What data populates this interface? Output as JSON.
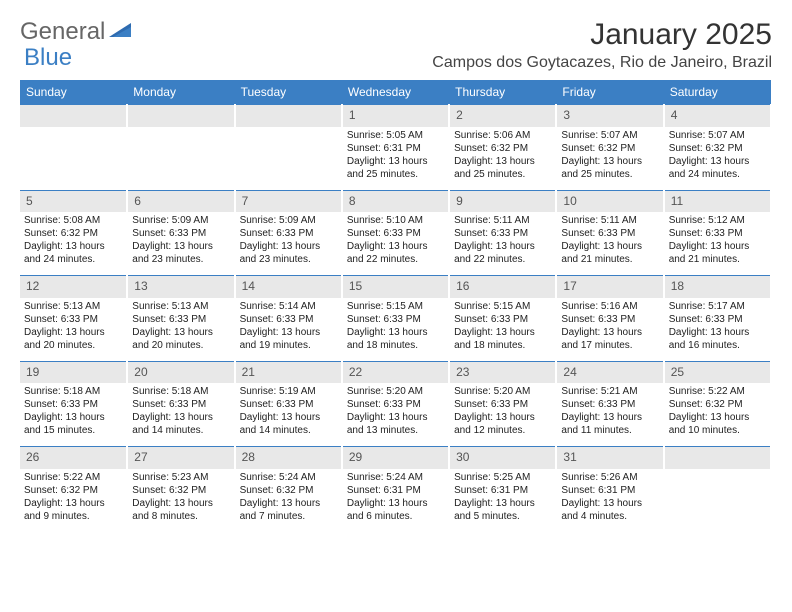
{
  "logo": {
    "part1": "General",
    "part2": "Blue"
  },
  "header": {
    "title": "January 2025",
    "location": "Campos dos Goytacazes, Rio de Janeiro, Brazil"
  },
  "colors": {
    "header_bg": "#3b7fc4",
    "header_text": "#ffffff",
    "daynum_bg": "#e8e8e8",
    "day_border": "#3b7fc4",
    "body_text": "#222222"
  },
  "weekdays": [
    "Sunday",
    "Monday",
    "Tuesday",
    "Wednesday",
    "Thursday",
    "Friday",
    "Saturday"
  ],
  "weeks": [
    [
      {
        "empty": true
      },
      {
        "empty": true
      },
      {
        "empty": true
      },
      {
        "day": "1",
        "sunrise": "Sunrise: 5:05 AM",
        "sunset": "Sunset: 6:31 PM",
        "day1": "Daylight: 13 hours",
        "day2": "and 25 minutes."
      },
      {
        "day": "2",
        "sunrise": "Sunrise: 5:06 AM",
        "sunset": "Sunset: 6:32 PM",
        "day1": "Daylight: 13 hours",
        "day2": "and 25 minutes."
      },
      {
        "day": "3",
        "sunrise": "Sunrise: 5:07 AM",
        "sunset": "Sunset: 6:32 PM",
        "day1": "Daylight: 13 hours",
        "day2": "and 25 minutes."
      },
      {
        "day": "4",
        "sunrise": "Sunrise: 5:07 AM",
        "sunset": "Sunset: 6:32 PM",
        "day1": "Daylight: 13 hours",
        "day2": "and 24 minutes."
      }
    ],
    [
      {
        "day": "5",
        "sunrise": "Sunrise: 5:08 AM",
        "sunset": "Sunset: 6:32 PM",
        "day1": "Daylight: 13 hours",
        "day2": "and 24 minutes."
      },
      {
        "day": "6",
        "sunrise": "Sunrise: 5:09 AM",
        "sunset": "Sunset: 6:33 PM",
        "day1": "Daylight: 13 hours",
        "day2": "and 23 minutes."
      },
      {
        "day": "7",
        "sunrise": "Sunrise: 5:09 AM",
        "sunset": "Sunset: 6:33 PM",
        "day1": "Daylight: 13 hours",
        "day2": "and 23 minutes."
      },
      {
        "day": "8",
        "sunrise": "Sunrise: 5:10 AM",
        "sunset": "Sunset: 6:33 PM",
        "day1": "Daylight: 13 hours",
        "day2": "and 22 minutes."
      },
      {
        "day": "9",
        "sunrise": "Sunrise: 5:11 AM",
        "sunset": "Sunset: 6:33 PM",
        "day1": "Daylight: 13 hours",
        "day2": "and 22 minutes."
      },
      {
        "day": "10",
        "sunrise": "Sunrise: 5:11 AM",
        "sunset": "Sunset: 6:33 PM",
        "day1": "Daylight: 13 hours",
        "day2": "and 21 minutes."
      },
      {
        "day": "11",
        "sunrise": "Sunrise: 5:12 AM",
        "sunset": "Sunset: 6:33 PM",
        "day1": "Daylight: 13 hours",
        "day2": "and 21 minutes."
      }
    ],
    [
      {
        "day": "12",
        "sunrise": "Sunrise: 5:13 AM",
        "sunset": "Sunset: 6:33 PM",
        "day1": "Daylight: 13 hours",
        "day2": "and 20 minutes."
      },
      {
        "day": "13",
        "sunrise": "Sunrise: 5:13 AM",
        "sunset": "Sunset: 6:33 PM",
        "day1": "Daylight: 13 hours",
        "day2": "and 20 minutes."
      },
      {
        "day": "14",
        "sunrise": "Sunrise: 5:14 AM",
        "sunset": "Sunset: 6:33 PM",
        "day1": "Daylight: 13 hours",
        "day2": "and 19 minutes."
      },
      {
        "day": "15",
        "sunrise": "Sunrise: 5:15 AM",
        "sunset": "Sunset: 6:33 PM",
        "day1": "Daylight: 13 hours",
        "day2": "and 18 minutes."
      },
      {
        "day": "16",
        "sunrise": "Sunrise: 5:15 AM",
        "sunset": "Sunset: 6:33 PM",
        "day1": "Daylight: 13 hours",
        "day2": "and 18 minutes."
      },
      {
        "day": "17",
        "sunrise": "Sunrise: 5:16 AM",
        "sunset": "Sunset: 6:33 PM",
        "day1": "Daylight: 13 hours",
        "day2": "and 17 minutes."
      },
      {
        "day": "18",
        "sunrise": "Sunrise: 5:17 AM",
        "sunset": "Sunset: 6:33 PM",
        "day1": "Daylight: 13 hours",
        "day2": "and 16 minutes."
      }
    ],
    [
      {
        "day": "19",
        "sunrise": "Sunrise: 5:18 AM",
        "sunset": "Sunset: 6:33 PM",
        "day1": "Daylight: 13 hours",
        "day2": "and 15 minutes."
      },
      {
        "day": "20",
        "sunrise": "Sunrise: 5:18 AM",
        "sunset": "Sunset: 6:33 PM",
        "day1": "Daylight: 13 hours",
        "day2": "and 14 minutes."
      },
      {
        "day": "21",
        "sunrise": "Sunrise: 5:19 AM",
        "sunset": "Sunset: 6:33 PM",
        "day1": "Daylight: 13 hours",
        "day2": "and 14 minutes."
      },
      {
        "day": "22",
        "sunrise": "Sunrise: 5:20 AM",
        "sunset": "Sunset: 6:33 PM",
        "day1": "Daylight: 13 hours",
        "day2": "and 13 minutes."
      },
      {
        "day": "23",
        "sunrise": "Sunrise: 5:20 AM",
        "sunset": "Sunset: 6:33 PM",
        "day1": "Daylight: 13 hours",
        "day2": "and 12 minutes."
      },
      {
        "day": "24",
        "sunrise": "Sunrise: 5:21 AM",
        "sunset": "Sunset: 6:33 PM",
        "day1": "Daylight: 13 hours",
        "day2": "and 11 minutes."
      },
      {
        "day": "25",
        "sunrise": "Sunrise: 5:22 AM",
        "sunset": "Sunset: 6:32 PM",
        "day1": "Daylight: 13 hours",
        "day2": "and 10 minutes."
      }
    ],
    [
      {
        "day": "26",
        "sunrise": "Sunrise: 5:22 AM",
        "sunset": "Sunset: 6:32 PM",
        "day1": "Daylight: 13 hours",
        "day2": "and 9 minutes."
      },
      {
        "day": "27",
        "sunrise": "Sunrise: 5:23 AM",
        "sunset": "Sunset: 6:32 PM",
        "day1": "Daylight: 13 hours",
        "day2": "and 8 minutes."
      },
      {
        "day": "28",
        "sunrise": "Sunrise: 5:24 AM",
        "sunset": "Sunset: 6:32 PM",
        "day1": "Daylight: 13 hours",
        "day2": "and 7 minutes."
      },
      {
        "day": "29",
        "sunrise": "Sunrise: 5:24 AM",
        "sunset": "Sunset: 6:31 PM",
        "day1": "Daylight: 13 hours",
        "day2": "and 6 minutes."
      },
      {
        "day": "30",
        "sunrise": "Sunrise: 5:25 AM",
        "sunset": "Sunset: 6:31 PM",
        "day1": "Daylight: 13 hours",
        "day2": "and 5 minutes."
      },
      {
        "day": "31",
        "sunrise": "Sunrise: 5:26 AM",
        "sunset": "Sunset: 6:31 PM",
        "day1": "Daylight: 13 hours",
        "day2": "and 4 minutes."
      },
      {
        "empty": true
      }
    ]
  ]
}
